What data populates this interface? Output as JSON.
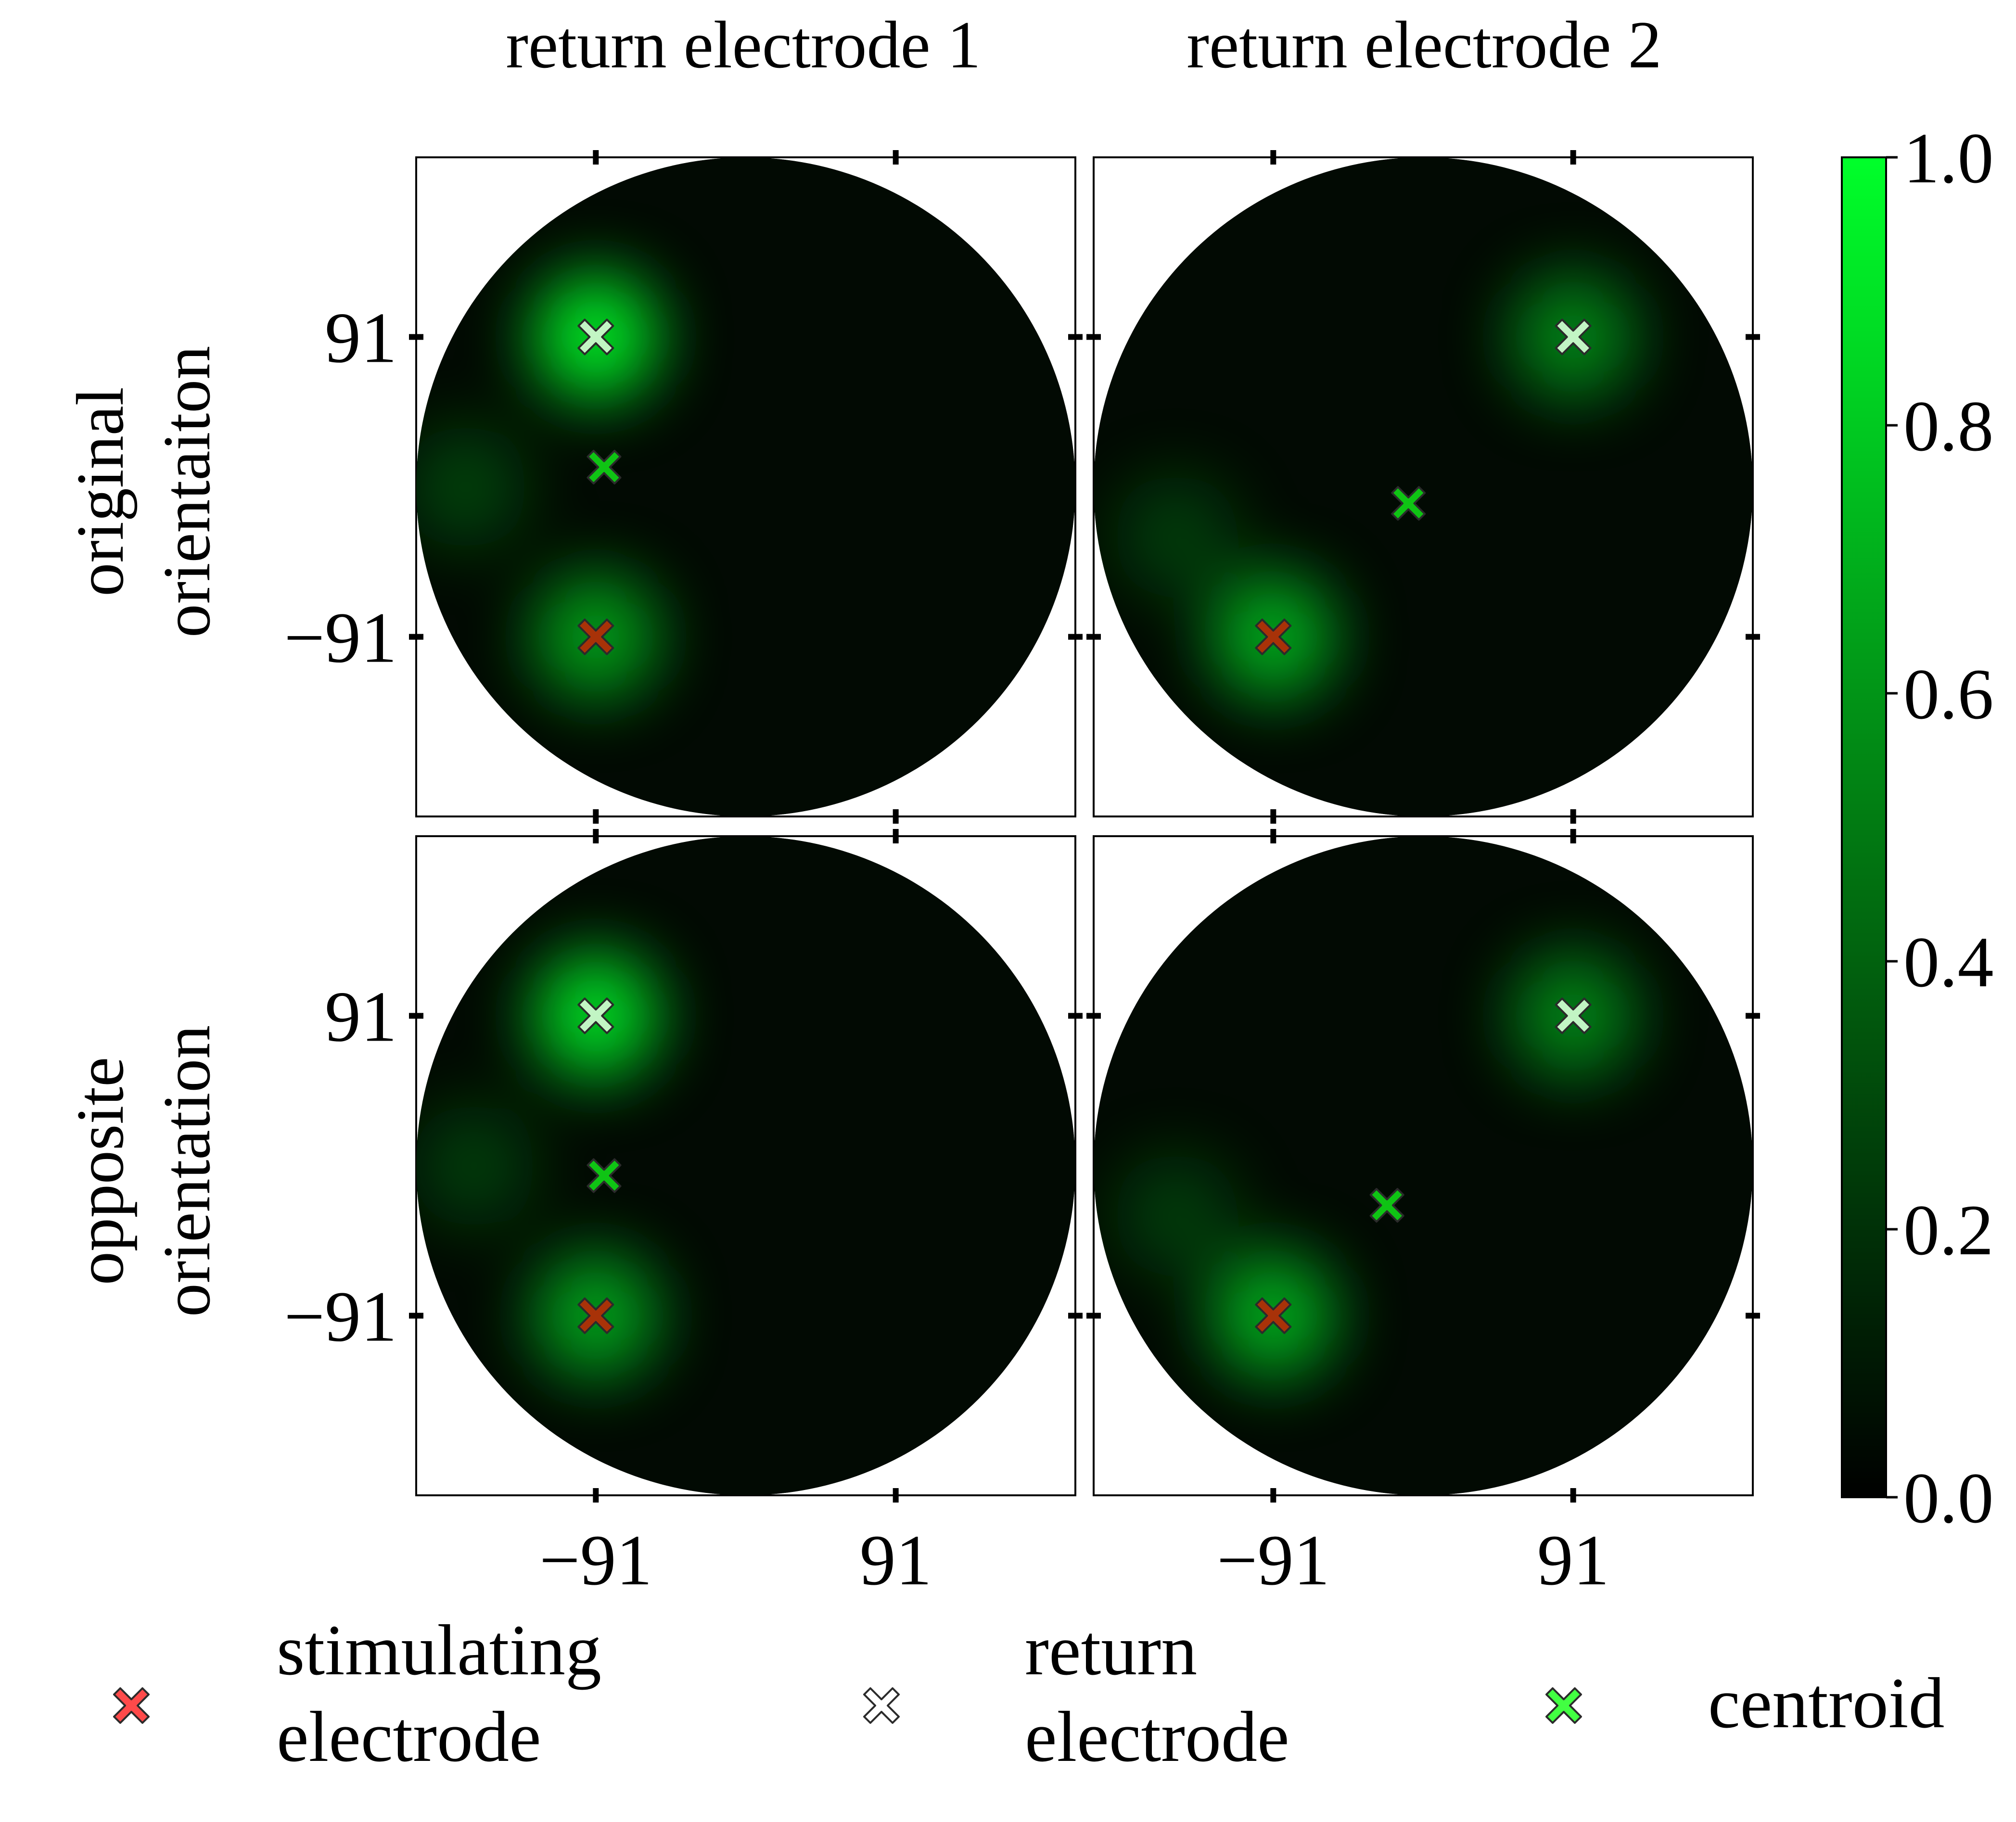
{
  "figure": {
    "column_titles": [
      "return electrode 1",
      "return electrode 2"
    ],
    "row_titles": [
      [
        "original",
        "orientaiton"
      ],
      [
        "opposite",
        "orientation"
      ]
    ],
    "x_ticks": [
      "−91",
      "91"
    ],
    "y_ticks": [
      "91",
      "−91"
    ]
  },
  "colorbar": {
    "min": 0.0,
    "max": 1.0,
    "tick_values": [
      0.0,
      0.2,
      0.4,
      0.6,
      0.8,
      1.0
    ],
    "tick_labels": [
      "0.0",
      "0.2",
      "0.4",
      "0.6",
      "0.8",
      "1.0"
    ],
    "colormap": [
      "#000000",
      "#00ff2a"
    ]
  },
  "legend": {
    "placement": "bottom",
    "entries": [
      {
        "label": [
          "stimulating",
          "electrode"
        ],
        "marker": "X",
        "color": "#ff4a4a",
        "icon": "x-marker-icon"
      },
      {
        "label": [
          "return",
          "electrode"
        ],
        "marker": "X",
        "color": "#ffffff",
        "icon": "x-marker-icon"
      },
      {
        "label": [
          "centroid"
        ],
        "marker": "X",
        "color": "#42ff42",
        "icon": "x-marker-icon"
      }
    ]
  },
  "chart_data": [
    {
      "type": "heatmap",
      "title": "",
      "xlabel": "",
      "ylabel": "",
      "row": "original orientaiton",
      "column": "return electrode 1",
      "xlim": [
        -200,
        200
      ],
      "ylim": [
        -200,
        200
      ],
      "heat_blobs": [
        {
          "x": -91,
          "y": 91,
          "intensity": 0.9
        },
        {
          "x": -91,
          "y": -91,
          "intensity": 0.6
        },
        {
          "x": -170,
          "y": 0,
          "intensity": 0.22
        }
      ],
      "stimulating_electrode": {
        "x": -91,
        "y": -91
      },
      "return_electrode": {
        "x": -91,
        "y": 91
      },
      "centroid": {
        "x": -86,
        "y": 12
      },
      "colors": {
        "stimulating": "#a83208",
        "return": "#c2f5c4",
        "centroid": "#0fc414"
      }
    },
    {
      "type": "heatmap",
      "title": "",
      "xlabel": "",
      "ylabel": "",
      "row": "original orientaiton",
      "column": "return electrode 2",
      "xlim": [
        -200,
        200
      ],
      "ylim": [
        -200,
        200
      ],
      "heat_blobs": [
        {
          "x": 91,
          "y": 91,
          "intensity": 0.5
        },
        {
          "x": -91,
          "y": -91,
          "intensity": 0.65
        },
        {
          "x": -150,
          "y": -30,
          "intensity": 0.2
        }
      ],
      "stimulating_electrode": {
        "x": -91,
        "y": -91
      },
      "return_electrode": {
        "x": 91,
        "y": 91
      },
      "centroid": {
        "x": -9,
        "y": -10
      },
      "colors": {
        "stimulating": "#a83208",
        "return": "#c2f5c4",
        "centroid": "#0fc414"
      }
    },
    {
      "type": "heatmap",
      "title": "",
      "xlabel": "",
      "ylabel": "",
      "row": "opposite orientation",
      "column": "return electrode 1",
      "xlim": [
        -200,
        200
      ],
      "ylim": [
        -200,
        200
      ],
      "heat_blobs": [
        {
          "x": -91,
          "y": 91,
          "intensity": 0.85
        },
        {
          "x": -91,
          "y": -91,
          "intensity": 0.62
        },
        {
          "x": -165,
          "y": 0,
          "intensity": 0.2
        }
      ],
      "stimulating_electrode": {
        "x": -91,
        "y": -91
      },
      "return_electrode": {
        "x": -91,
        "y": 91
      },
      "centroid": {
        "x": -86,
        "y": -6
      },
      "colors": {
        "stimulating": "#a83208",
        "return": "#c2f5c4",
        "centroid": "#0fc414"
      }
    },
    {
      "type": "heatmap",
      "title": "",
      "xlabel": "",
      "ylabel": "",
      "row": "opposite orientation",
      "column": "return electrode 2",
      "xlim": [
        -200,
        200
      ],
      "ylim": [
        -200,
        200
      ],
      "heat_blobs": [
        {
          "x": 91,
          "y": 91,
          "intensity": 0.5
        },
        {
          "x": -91,
          "y": -91,
          "intensity": 0.65
        },
        {
          "x": -150,
          "y": -30,
          "intensity": 0.2
        }
      ],
      "stimulating_electrode": {
        "x": -91,
        "y": -91
      },
      "return_electrode": {
        "x": 91,
        "y": 91
      },
      "centroid": {
        "x": -22,
        "y": -24
      },
      "colors": {
        "stimulating": "#a83208",
        "return": "#c2f5c4",
        "centroid": "#0fc414"
      }
    }
  ]
}
